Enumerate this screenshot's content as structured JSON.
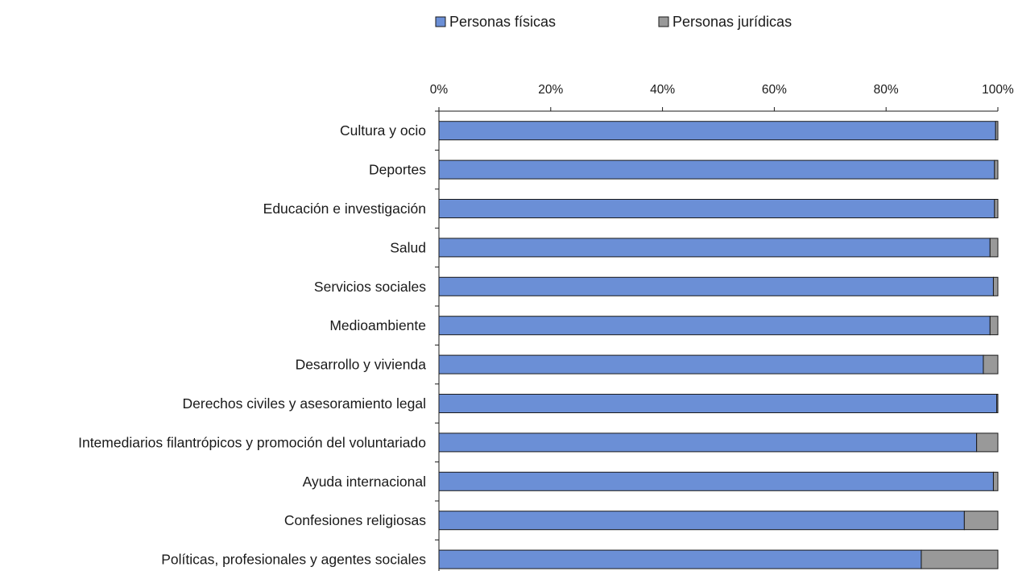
{
  "chart_data": {
    "type": "bar",
    "orientation": "horizontal",
    "stacked": "percent",
    "title": "",
    "xlabel": "",
    "ylabel": "",
    "xlim": [
      0,
      100
    ],
    "x_ticks": [
      "0%",
      "20%",
      "40%",
      "60%",
      "80%",
      "100%"
    ],
    "x_axis_position": "top",
    "grid": false,
    "legend_position": "top",
    "categories": [
      "Cultura y ocio",
      "Deportes",
      "Educación e investigación",
      "Salud",
      "Servicios sociales",
      "Medioambiente",
      "Desarrollo y vivienda",
      "Derechos civiles y asesoramiento legal",
      "Intemediarios filantrópicos y promoción del voluntariado",
      "Ayuda internacional",
      "Confesiones religiosas",
      "Políticas, profesionales y agentes sociales"
    ],
    "series": [
      {
        "name": "Personas físicas",
        "color": "#6b8fd6",
        "values": [
          99.6,
          99.4,
          99.4,
          98.6,
          99.2,
          98.6,
          97.4,
          99.8,
          96.2,
          99.2,
          94.0,
          86.3
        ]
      },
      {
        "name": "Personas jurídicas",
        "color": "#999999",
        "values": [
          0.4,
          0.6,
          0.6,
          1.4,
          0.8,
          1.4,
          2.6,
          0.2,
          3.8,
          0.8,
          6.0,
          13.7
        ]
      }
    ]
  }
}
